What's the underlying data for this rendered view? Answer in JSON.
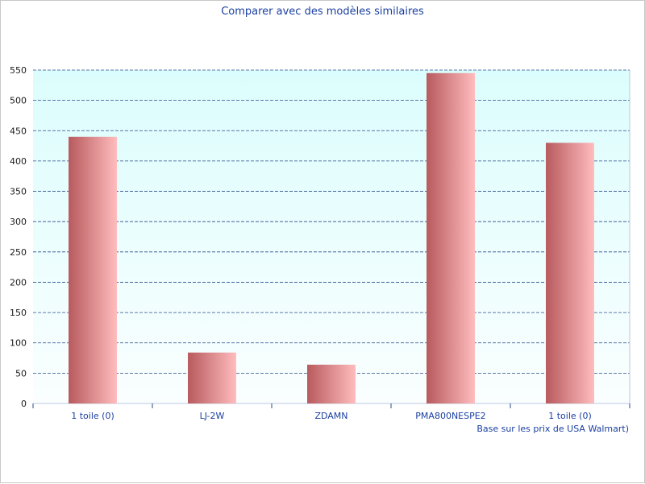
{
  "chart_data": {
    "type": "bar",
    "title": "Comparer avec des modèles similaires",
    "note": "Base sur les prix de USA Walmart)",
    "categories": [
      "1 toile (0)",
      "LJ-2W",
      "ZDAMN",
      "PMA800NESPE2",
      "1 toile (0)"
    ],
    "values": [
      440,
      84,
      64,
      545,
      430
    ],
    "ylim": [
      0,
      550
    ],
    "yticks": [
      0,
      50,
      100,
      150,
      200,
      250,
      300,
      350,
      400,
      450,
      500,
      550
    ],
    "xlabel": "",
    "ylabel": "",
    "grid": true,
    "legend": "none",
    "colors": {
      "bar_dark": "#b85a5e",
      "bar_light": "#ffbcbd",
      "plot_bg_top": "#dcfdfd",
      "plot_bg_bottom": "#fafefe",
      "grid": "#2b4a8a",
      "axis": "#b8c8e0",
      "title": "#1a3fa0"
    }
  }
}
